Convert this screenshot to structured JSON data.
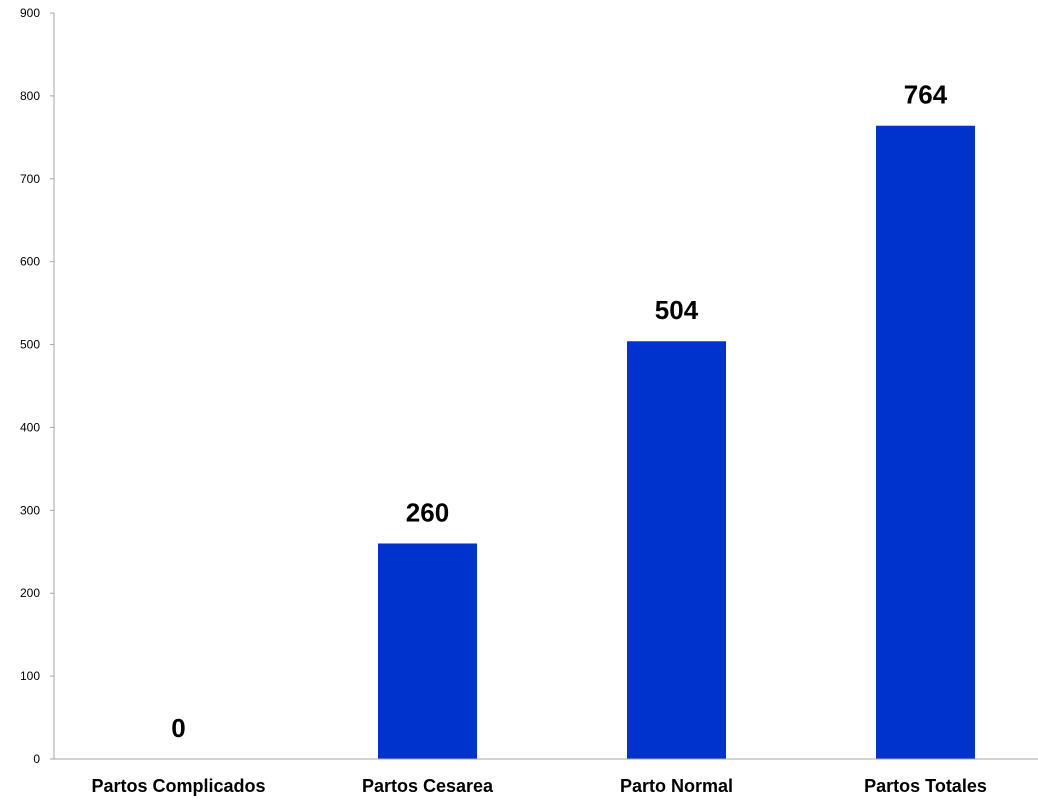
{
  "chart_data": {
    "type": "bar",
    "title": "",
    "xlabel": "",
    "ylabel": "",
    "categories": [
      "Partos Complicados",
      "Partos Cesarea",
      "Parto Normal",
      "Partos Totales"
    ],
    "values": [
      0,
      260,
      504,
      764
    ],
    "data_labels": [
      "0",
      "260",
      "504",
      "764"
    ],
    "ylim": [
      0,
      900
    ],
    "yticks": [
      0,
      100,
      200,
      300,
      400,
      500,
      600,
      700,
      800,
      900
    ],
    "ytick_labels": [
      "0",
      "100",
      "200",
      "300",
      "400",
      "500",
      "600",
      "700",
      "800",
      "900"
    ],
    "grid": false,
    "legend": "none",
    "bar_color": "#0033cc"
  }
}
